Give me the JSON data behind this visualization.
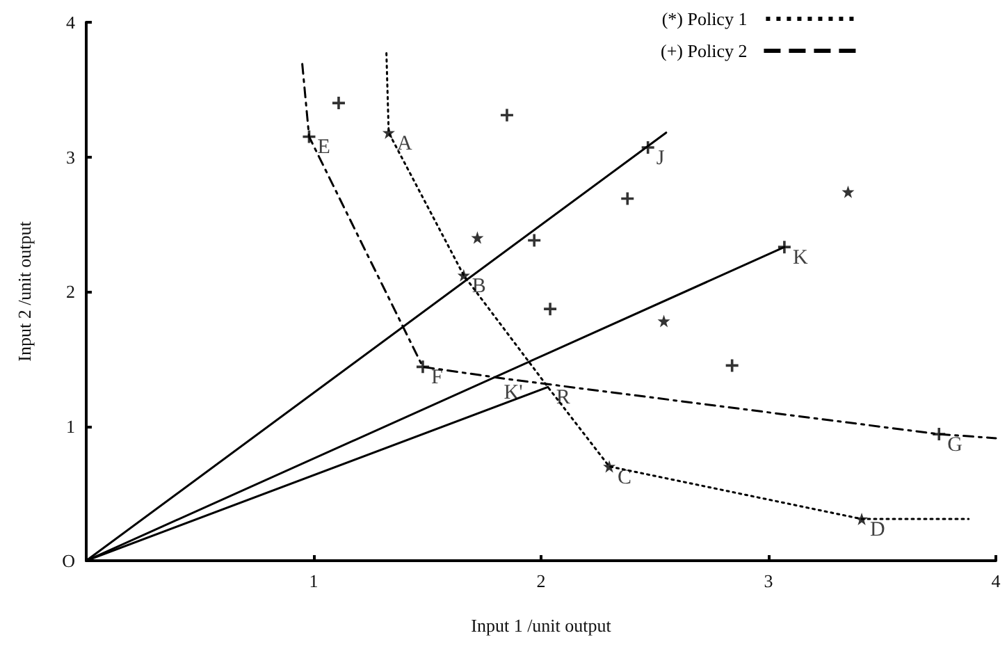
{
  "chart_data": {
    "type": "scatter",
    "xlabel": "Input 1 /unit output",
    "ylabel": "Input 2 /unit output",
    "xlim": [
      0,
      4
    ],
    "ylim": [
      0,
      4
    ],
    "xticks": [
      1,
      2,
      3,
      4
    ],
    "yticks": [
      {
        "value": 0,
        "label": "O"
      },
      1,
      2,
      3,
      4
    ],
    "grid": false,
    "legend": "top right",
    "series": [
      {
        "name": "(*) Policy 1",
        "type": "line",
        "line_style": "dotted",
        "marker": "none",
        "color": "#000000",
        "x": [
          1.32,
          1.33,
          1.66,
          2.03,
          2.3,
          3.41,
          3.88
        ],
        "values": [
          3.77,
          3.18,
          2.12,
          1.29,
          0.7,
          0.31,
          0.31
        ]
      },
      {
        "name": "(+) Policy 2",
        "type": "line",
        "line_style": "dashed",
        "marker": "none",
        "color": "#000000",
        "x": [
          0.95,
          0.98,
          1.48,
          1.85,
          3.75,
          4.0
        ],
        "values": [
          3.69,
          3.15,
          1.44,
          1.35,
          0.94,
          0.91
        ]
      },
      {
        "marker": "star",
        "color": "#000000",
        "x": [
          1.33,
          1.66,
          1.72,
          2.54,
          3.35,
          2.3,
          3.41
        ],
        "values": [
          3.18,
          2.12,
          2.4,
          1.78,
          2.74,
          0.7,
          0.31
        ]
      },
      {
        "marker": "cross",
        "color": "#000000",
        "x": [
          0.98,
          1.11,
          1.85,
          2.47,
          2.38,
          1.97,
          2.04,
          3.07,
          2.84,
          3.75,
          1.48
        ],
        "values": [
          3.15,
          3.4,
          3.31,
          3.07,
          2.69,
          2.38,
          1.87,
          2.33,
          1.45,
          0.94,
          1.44
        ]
      },
      {
        "type": "line",
        "line_style": "solid",
        "marker": "none",
        "color": "#000000",
        "x": [
          0,
          2.55
        ],
        "values": [
          0,
          3.18
        ]
      },
      {
        "type": "line",
        "line_style": "solid",
        "marker": "none",
        "color": "#000000",
        "x": [
          0,
          3.07
        ],
        "values": [
          0,
          2.33
        ]
      },
      {
        "type": "line",
        "line_style": "solid",
        "marker": "none",
        "color": "#000000",
        "x": [
          0,
          2.03
        ],
        "values": [
          0,
          1.29
        ]
      }
    ],
    "annotations": [
      {
        "text": "A",
        "x": 1.33,
        "y": 3.18
      },
      {
        "text": "B",
        "x": 1.66,
        "y": 2.12
      },
      {
        "text": "C",
        "x": 2.3,
        "y": 0.7
      },
      {
        "text": "D",
        "x": 3.41,
        "y": 0.31
      },
      {
        "text": "E",
        "x": 0.98,
        "y": 3.15
      },
      {
        "text": "F",
        "x": 1.48,
        "y": 1.44
      },
      {
        "text": "G",
        "x": 3.75,
        "y": 0.94
      },
      {
        "text": "J",
        "x": 2.47,
        "y": 3.07
      },
      {
        "text": "K",
        "x": 3.07,
        "y": 2.33
      },
      {
        "text": "K'",
        "x": 1.8,
        "y": 1.33
      },
      {
        "text": "R",
        "x": 2.03,
        "y": 1.29
      }
    ]
  }
}
